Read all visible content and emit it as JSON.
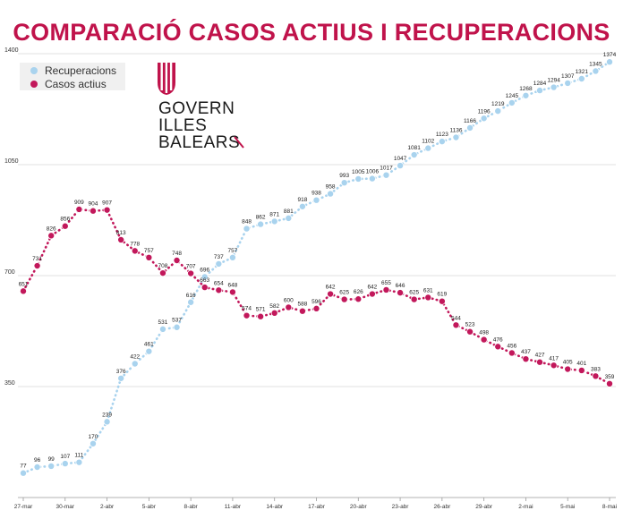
{
  "chart_data": {
    "type": "line",
    "title": "COMPARACIÓ CASOS ACTIUS I RECUPERACIONS",
    "legend_position": "top-left",
    "grid": "horizontal",
    "ylim": [
      0,
      1400
    ],
    "yticks": [
      350,
      700,
      1050,
      1400
    ],
    "x_tick_labels": [
      "27-mar",
      "30-mar",
      "2-abr",
      "5-abr",
      "8-abr",
      "11-abr",
      "14-abr",
      "17-abr",
      "20-abr",
      "23-abr",
      "26-abr",
      "29-abr",
      "2-mai",
      "5-mai",
      "8-mai"
    ],
    "x_tick_every": 3,
    "colors": {
      "recuperacions": "#a9d3ee",
      "casos_actius": "#c2185b",
      "title": "#c0134b"
    },
    "series": [
      {
        "name": "Recuperacions",
        "values": [
          77,
          96,
          99,
          107,
          111,
          170,
          239,
          376,
          422,
          461,
          531,
          537,
          616,
          696,
          737,
          757,
          848,
          862,
          871,
          881,
          918,
          938,
          958,
          993,
          1005,
          1006,
          1017,
          1047,
          1081,
          1102,
          1123,
          1136,
          1166,
          1196,
          1219,
          1245,
          1268,
          1284,
          1294,
          1307,
          1321,
          1345,
          1374
        ]
      },
      {
        "name": "Casos actius",
        "values": [
          651,
          731,
          826,
          856,
          909,
          904,
          907,
          813,
          778,
          757,
          708,
          748,
          707,
          663,
          654,
          648,
          574,
          571,
          582,
          600,
          588,
          596,
          642,
          625,
          626,
          642,
          655,
          646,
          625,
          631,
          619,
          544,
          523,
          498,
          476,
          456,
          437,
          427,
          417,
          405,
          401,
          383,
          359
        ]
      }
    ]
  },
  "logo": {
    "line1": "GOVERN",
    "line2": "ILLES",
    "line3": "BALEARS"
  }
}
